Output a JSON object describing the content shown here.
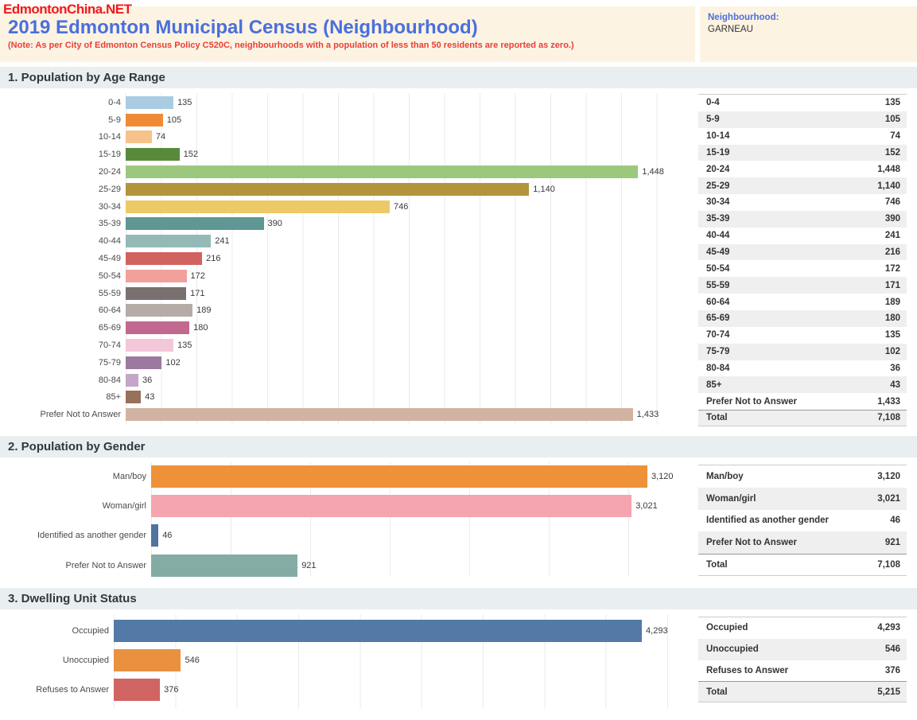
{
  "watermark": "EdmontonChina.NET",
  "header": {
    "title": "2019 Edmonton Municipal Census (Neighbourhood)",
    "note": "(Note: As per City of Edmonton Census Policy C520C, neighbourhoods with a population of less than 50 residents are reported as zero.)",
    "neighbourhood_label": "Neighbourhood:",
    "neighbourhood_value": "GARNEAU"
  },
  "colors": {
    "header_bg": "#fdf3e2",
    "title_blue": "#4a6fdc",
    "note_red": "#e8403a",
    "watermark_red": "#ed1b23",
    "section_band_bg": "#e9eef0",
    "gridline": "#ebebeb",
    "table_stripe": "#efefef"
  },
  "chart_data": [
    {
      "type": "bar",
      "orientation": "horizontal",
      "title": "1. Population by Age Range",
      "categories": [
        "0-4",
        "5-9",
        "10-14",
        "15-19",
        "20-24",
        "25-29",
        "30-34",
        "35-39",
        "40-44",
        "45-49",
        "50-54",
        "55-59",
        "60-64",
        "65-69",
        "70-74",
        "75-79",
        "80-84",
        "85+",
        "Prefer Not to Answer"
      ],
      "values": [
        135,
        105,
        74,
        152,
        1448,
        1140,
        746,
        390,
        241,
        216,
        172,
        171,
        189,
        180,
        135,
        102,
        36,
        43,
        1433
      ],
      "value_labels": [
        "135",
        "105",
        "74",
        "152",
        "1,448",
        "1,140",
        "746",
        "390",
        "241",
        "216",
        "172",
        "171",
        "189",
        "180",
        "135",
        "102",
        "36",
        "43",
        "1,433"
      ],
      "bar_colors": [
        "#a9cce3",
        "#ef8b37",
        "#f5c28a",
        "#598a3c",
        "#9cc87e",
        "#b2943b",
        "#eec968",
        "#5e9794",
        "#93bab6",
        "#d16260",
        "#f1a09c",
        "#797170",
        "#b5aca7",
        "#c2698f",
        "#f2c7d9",
        "#9c7aa0",
        "#c5a5ca",
        "#97715a",
        "#d2b2a2"
      ],
      "xlim": [
        0,
        1600
      ],
      "grid_step": 100,
      "grid": true,
      "total_label": "Total",
      "total_value_label": "7,108"
    },
    {
      "type": "bar",
      "orientation": "horizontal",
      "title": "2. Population by Gender",
      "categories": [
        "Man/boy",
        "Woman/girl",
        "Identified as another gender",
        "Prefer Not to Answer"
      ],
      "values": [
        3120,
        3021,
        46,
        921
      ],
      "value_labels": [
        "3,120",
        "3,021",
        "46",
        "921"
      ],
      "bar_colors": [
        "#ee9138",
        "#f4a5b0",
        "#50739f",
        "#84aca4"
      ],
      "xlim": [
        0,
        3400
      ],
      "grid_step": 500,
      "grid": true,
      "total_label": "Total",
      "total_value_label": "7,108"
    },
    {
      "type": "bar",
      "orientation": "horizontal",
      "title": "3. Dwelling Unit Status",
      "categories": [
        "Occupied",
        "Unoccupied",
        "Refuses to Answer"
      ],
      "values": [
        4293,
        546,
        376
      ],
      "value_labels": [
        "4,293",
        "546",
        "376"
      ],
      "bar_colors": [
        "#537aa7",
        "#ea9140",
        "#d06463"
      ],
      "xlim": [
        0,
        4700
      ],
      "grid_step": 500,
      "grid": true,
      "total_label": "Total",
      "total_value_label": "5,215"
    }
  ]
}
